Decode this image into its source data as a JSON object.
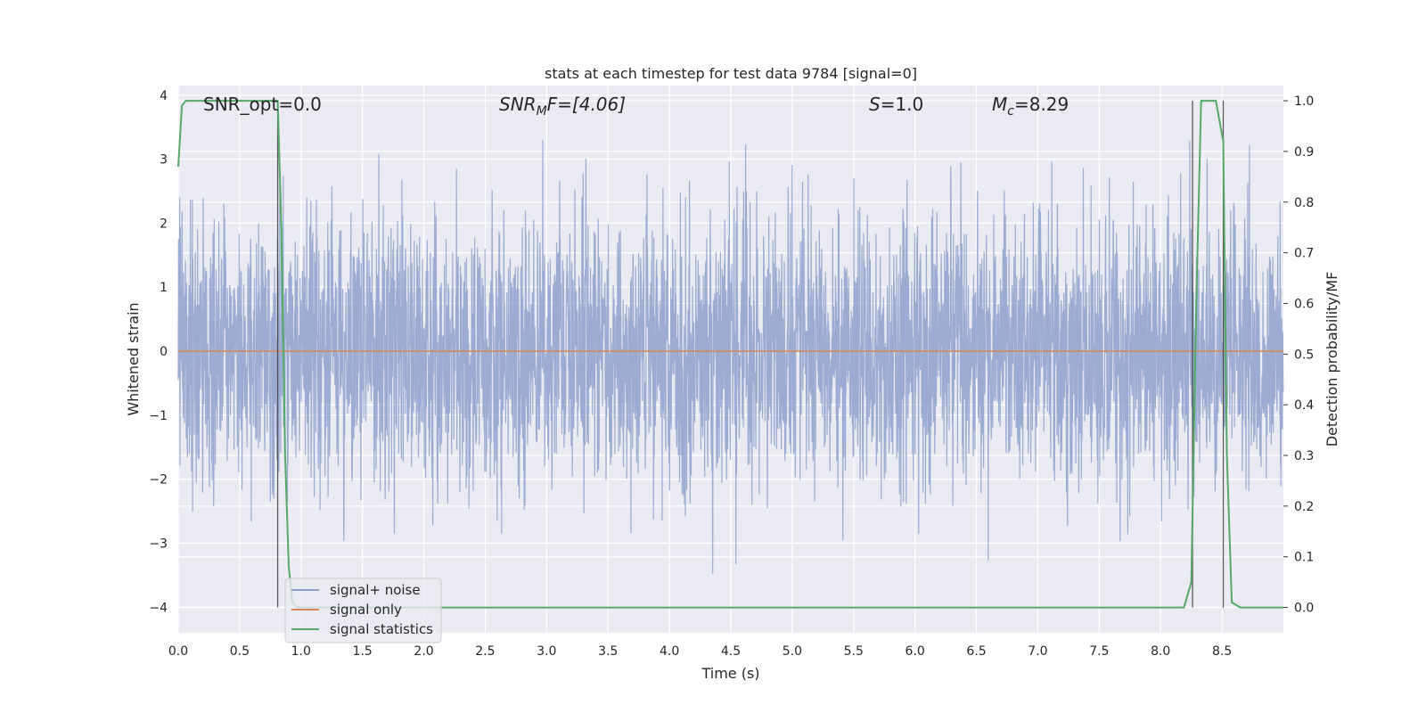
{
  "chart_data": {
    "type": "line",
    "title": "stats at each timestep for test data 9784 [signal=0]",
    "xlabel": "Time (s)",
    "ylabel_left": "Whitened strain",
    "ylabel_right": "Detection probability/MF",
    "xlim": [
      0.0,
      9.0
    ],
    "ylim_left": [
      -4.4,
      4.15
    ],
    "ylim_right": [
      -0.05,
      1.03
    ],
    "grid": true,
    "legend_placement": "lower-left",
    "x_ticks": [
      "0.0",
      "0.5",
      "1.0",
      "1.5",
      "2.0",
      "2.5",
      "3.0",
      "3.5",
      "4.0",
      "4.5",
      "5.0",
      "5.5",
      "6.0",
      "6.5",
      "7.0",
      "7.5",
      "8.0",
      "8.5"
    ],
    "y_left_ticks": [
      "4",
      "3",
      "2",
      "1",
      "0",
      "−1",
      "−2",
      "−3",
      "−4"
    ],
    "y_right_ticks": [
      "1.0",
      "0.9",
      "0.8",
      "0.7",
      "0.6",
      "0.5",
      "0.4",
      "0.3",
      "0.2",
      "0.1",
      "0.0"
    ],
    "annotations": {
      "snr_opt": "SNR_opt=0.0",
      "snr_mf_prefix": "SNR",
      "snr_mf_sub": "M",
      "snr_mf_suffix": "F=[4.06]",
      "s_var": "S",
      "s_val": "=1.0",
      "mc_var": "M",
      "mc_sub": "c",
      "mc_val": "=8.29"
    },
    "vlines_x": [
      0.81,
      8.26,
      8.51
    ],
    "series": [
      {
        "name": "signal+ noise",
        "color": "#8da0cb",
        "axis": "left",
        "summary": "whitened noise fluctuating between about -4 and 3.8 across 0 to 9 s"
      },
      {
        "name": "signal only",
        "color": "#dd8452",
        "axis": "left",
        "x": [
          0.0,
          9.0
        ],
        "y": [
          0.0,
          0.0
        ]
      },
      {
        "name": "signal statistics",
        "color": "#55a868",
        "axis": "right",
        "x": [
          0.0,
          0.03,
          0.06,
          0.12,
          0.25,
          0.5,
          0.78,
          0.81,
          0.84,
          0.87,
          0.9,
          0.93,
          0.97,
          1.2,
          8.0,
          8.19,
          8.25,
          8.29,
          8.33,
          8.45,
          8.51,
          8.54,
          8.58,
          8.65,
          9.0
        ],
        "y": [
          0.87,
          0.99,
          1.0,
          1.0,
          1.0,
          1.0,
          1.0,
          1.0,
          0.75,
          0.3,
          0.08,
          0.01,
          0.0,
          0.0,
          0.0,
          0.0,
          0.05,
          0.6,
          1.0,
          1.0,
          0.92,
          0.3,
          0.01,
          0.0,
          0.0
        ]
      }
    ],
    "legend": [
      "signal+ noise",
      "signal only",
      "signal statistics"
    ]
  }
}
